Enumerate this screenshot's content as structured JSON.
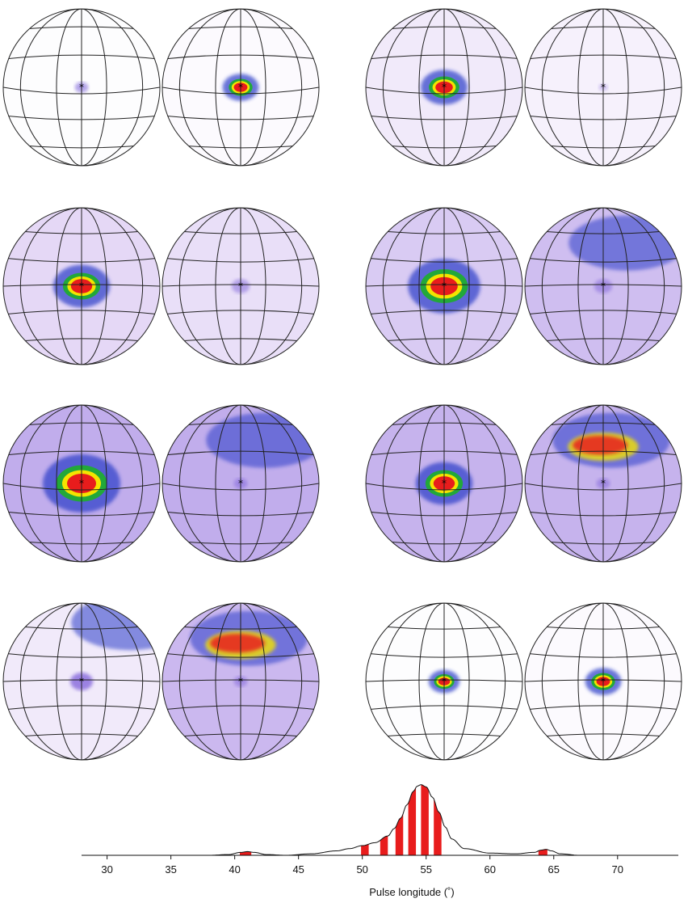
{
  "figure": {
    "panel_count": 8,
    "globes_per_panel": 2,
    "colors": {
      "density_low": "#c7a8ec",
      "density_mid": "#7a5cd8",
      "density_high": "#2a3cc8",
      "density_cyan": "#18c8c8",
      "density_green": "#22a83a",
      "density_yellow": "#f4e400",
      "density_peak": "#e81c1c",
      "grid": "#222222",
      "bar_fill": "#e81c1c",
      "curve": "#111111"
    }
  },
  "chart_data": {
    "type": "area",
    "xlabel": "Pulse longitude (˚)",
    "xlim": [
      28,
      74
    ],
    "ylim": [
      0,
      1
    ],
    "x_ticks": [
      30,
      35,
      40,
      45,
      50,
      55,
      60,
      65,
      70
    ],
    "x_tick_labels": [
      "30",
      "35",
      "40",
      "45",
      "50",
      "55",
      "60",
      "65",
      "70"
    ],
    "profile": {
      "x": [
        28,
        38,
        39.5,
        40.5,
        41,
        41.5,
        42.5,
        44,
        46,
        48,
        49,
        50,
        51,
        52,
        52.5,
        53,
        53.5,
        54,
        54.3,
        54.6,
        55,
        55.5,
        56,
        56.5,
        57,
        58,
        60,
        62,
        63.5,
        64,
        64.4,
        64.8,
        65.5,
        67,
        74
      ],
      "y": [
        0.0,
        0.0,
        0.01,
        0.04,
        0.05,
        0.04,
        0.01,
        0.0,
        0.02,
        0.06,
        0.09,
        0.13,
        0.17,
        0.26,
        0.36,
        0.5,
        0.68,
        0.86,
        0.93,
        0.95,
        0.92,
        0.78,
        0.58,
        0.38,
        0.22,
        0.09,
        0.03,
        0.02,
        0.04,
        0.07,
        0.08,
        0.06,
        0.02,
        0.0,
        0.0
      ]
    },
    "shaded_strips": [
      {
        "x0": 40.4,
        "x1": 41.3
      },
      {
        "x0": 49.9,
        "x1": 50.5
      },
      {
        "x0": 51.4,
        "x1": 52.0
      },
      {
        "x0": 52.6,
        "x1": 53.2
      },
      {
        "x0": 53.6,
        "x1": 54.2
      },
      {
        "x0": 54.6,
        "x1": 55.2
      },
      {
        "x0": 55.6,
        "x1": 56.2
      },
      {
        "x0": 63.8,
        "x1": 64.5
      }
    ]
  }
}
